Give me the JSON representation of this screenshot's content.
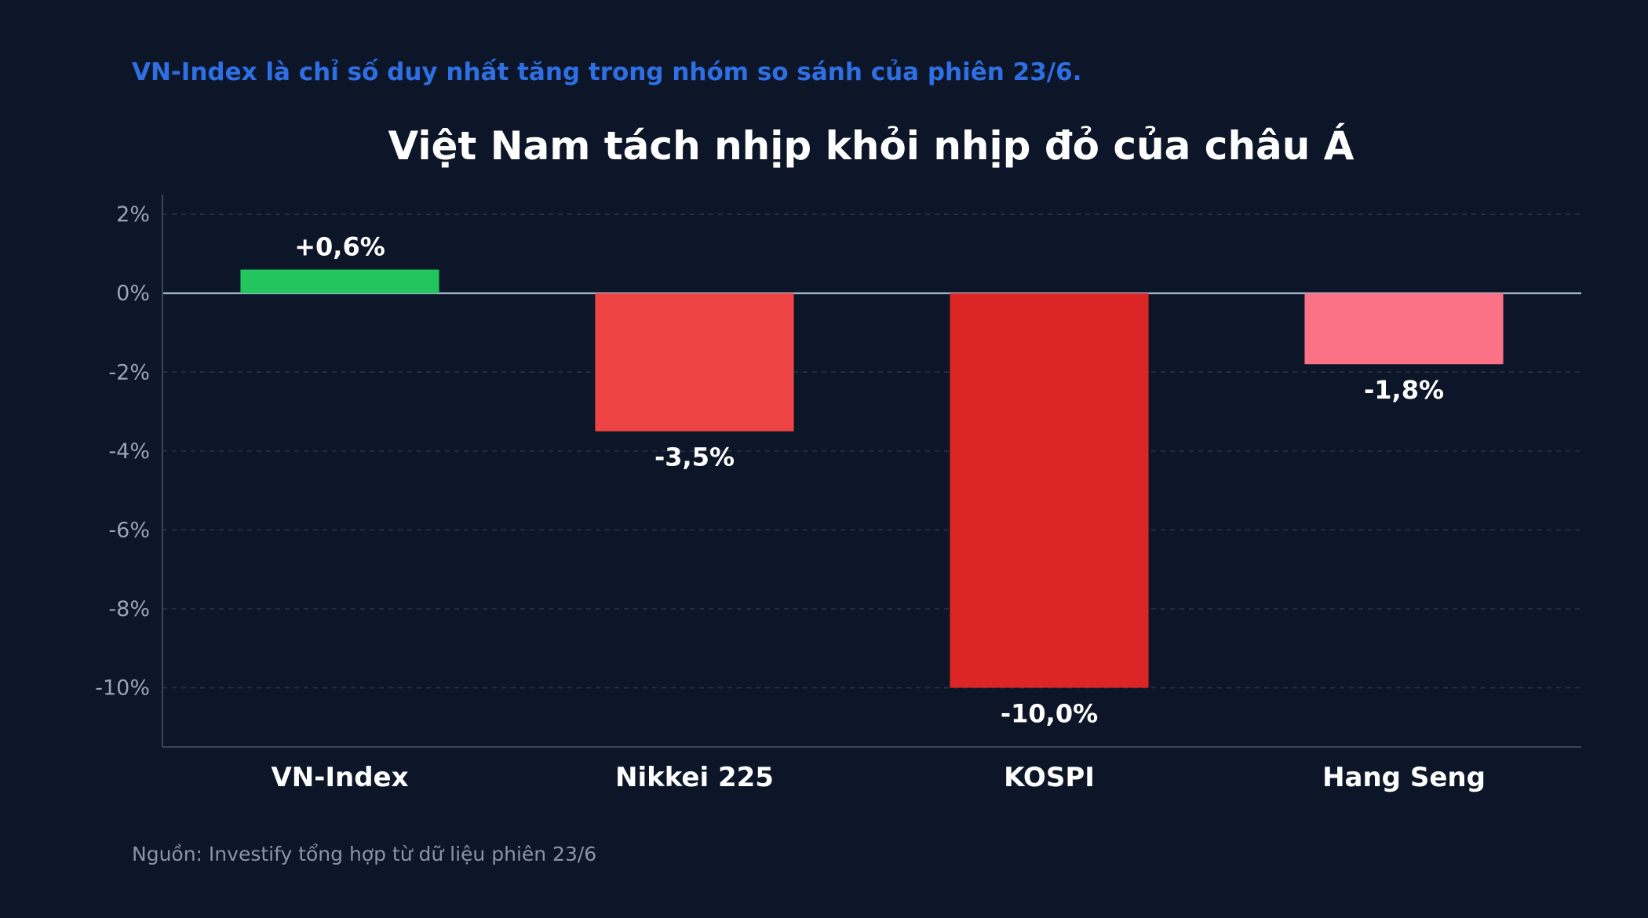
{
  "subtitle": "VN-Index là chỉ số duy nhất tăng trong nhóm so sánh của phiên 23/6.",
  "source": "Nguồn: Investify tổng hợp từ dữ liệu phiên 23/6",
  "chart_data": {
    "type": "bar",
    "title": "Việt Nam tách nhịp khỏi nhịp đỏ của châu Á",
    "xlabel": "",
    "ylabel": "",
    "categories": [
      "VN-Index",
      "Nikkei 225",
      "KOSPI",
      "Hang Seng"
    ],
    "values": [
      0.6,
      -3.5,
      -10.0,
      -1.8
    ],
    "value_labels": [
      "+0,6%",
      "-3,5%",
      "-10,0%",
      "-1,8%"
    ],
    "bar_colors": [
      "#22c55e",
      "#ef4444",
      "#dc2626",
      "#fb7185"
    ],
    "ylim": [
      -11.5,
      2.5
    ],
    "yticks": [
      2,
      0,
      -2,
      -4,
      -6,
      -8,
      -10
    ],
    "ytick_labels": [
      "2%",
      "0%",
      "-2%",
      "-4%",
      "-6%",
      "-8%",
      "-10%"
    ],
    "grid": true,
    "legend": "none",
    "colors": {
      "background": "#0c1628",
      "grid": "#2a3446",
      "zero_line": "#9fb3c8",
      "axis": "#3a4558",
      "tick_text": "#9aa4b4",
      "label_text": "#ffffff"
    }
  }
}
